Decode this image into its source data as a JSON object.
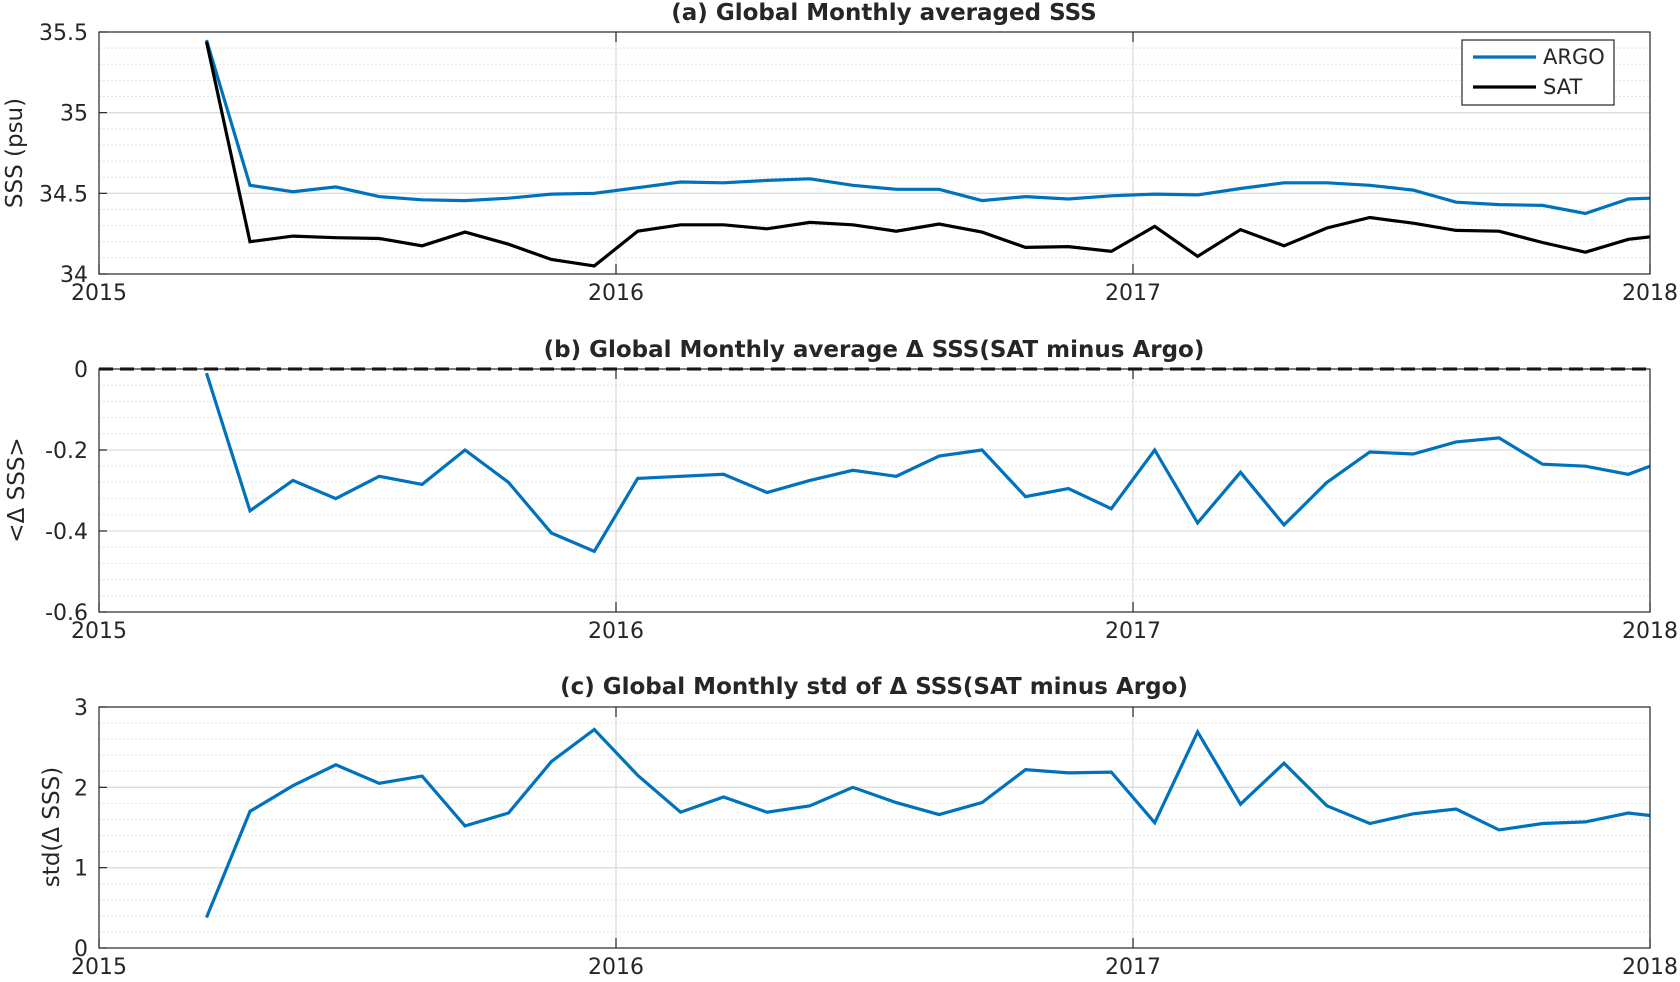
{
  "chart_data": [
    {
      "id": "a",
      "type": "line",
      "title": "(a) Global Monthly averaged SSS",
      "ylabel": "SSS (psu)",
      "xlabel": "",
      "xlim": [
        2015,
        2018
      ],
      "ylim": [
        34,
        35.5
      ],
      "xticks": [
        "2015",
        "2016",
        "2017",
        "2018"
      ],
      "yticks": [
        "34",
        "34.5",
        "35",
        "35.5"
      ],
      "grid": true,
      "legend": {
        "placement": "top-right",
        "entries": [
          "ARGO",
          "SAT"
        ]
      },
      "x": [
        2015.208,
        2015.292,
        2015.375,
        2015.458,
        2015.542,
        2015.625,
        2015.708,
        2015.792,
        2015.875,
        2015.958,
        2016.042,
        2016.125,
        2016.208,
        2016.292,
        2016.375,
        2016.458,
        2016.542,
        2016.625,
        2016.708,
        2016.792,
        2016.875,
        2016.958,
        2017.042,
        2017.125,
        2017.208,
        2017.292,
        2017.375,
        2017.458,
        2017.542,
        2017.625,
        2017.708,
        2017.792,
        2017.875,
        2017.958,
        2018.0
      ],
      "series": [
        {
          "name": "ARGO",
          "color": "#0072BD",
          "values": [
            35.45,
            34.55,
            34.51,
            34.54,
            34.48,
            34.46,
            34.455,
            34.47,
            34.495,
            34.5,
            34.535,
            34.57,
            34.565,
            34.58,
            34.59,
            34.55,
            34.525,
            34.525,
            34.455,
            34.48,
            34.465,
            34.485,
            34.495,
            34.49,
            34.53,
            34.565,
            34.565,
            34.55,
            34.52,
            34.445,
            34.43,
            34.425,
            34.375,
            34.465,
            34.47
          ]
        },
        {
          "name": "SAT",
          "color": "#000000",
          "values": [
            35.44,
            34.2,
            34.235,
            34.225,
            34.22,
            34.175,
            34.26,
            34.185,
            34.09,
            34.05,
            34.265,
            34.305,
            34.305,
            34.28,
            34.32,
            34.305,
            34.265,
            34.31,
            34.26,
            34.165,
            34.17,
            34.14,
            34.295,
            34.11,
            34.275,
            34.175,
            34.285,
            34.35,
            34.315,
            34.27,
            34.265,
            34.195,
            34.135,
            34.215,
            34.23
          ]
        }
      ]
    },
    {
      "id": "b",
      "type": "line",
      "title": "(b) Global Monthly average Δ SSS(SAT minus Argo)",
      "ylabel": "<Δ SSS>",
      "xlabel": "",
      "xlim": [
        2015,
        2018
      ],
      "ylim": [
        -0.6,
        0
      ],
      "xticks": [
        "2015",
        "2016",
        "2017",
        "2018"
      ],
      "yticks": [
        "-0.6",
        "-0.4",
        "-0.2",
        "0"
      ],
      "grid": true,
      "reference_line": {
        "y": 0,
        "style": "dashed",
        "color": "#000000"
      },
      "x": [
        2015.208,
        2015.292,
        2015.375,
        2015.458,
        2015.542,
        2015.625,
        2015.708,
        2015.792,
        2015.875,
        2015.958,
        2016.042,
        2016.125,
        2016.208,
        2016.292,
        2016.375,
        2016.458,
        2016.542,
        2016.625,
        2016.708,
        2016.792,
        2016.875,
        2016.958,
        2017.042,
        2017.125,
        2017.208,
        2017.292,
        2017.375,
        2017.458,
        2017.542,
        2017.625,
        2017.708,
        2017.792,
        2017.875,
        2017.958,
        2018.0
      ],
      "series": [
        {
          "name": "",
          "color": "#0072BD",
          "values": [
            -0.01,
            -0.35,
            -0.275,
            -0.32,
            -0.265,
            -0.285,
            -0.2,
            -0.28,
            -0.405,
            -0.45,
            -0.27,
            -0.265,
            -0.26,
            -0.305,
            -0.275,
            -0.25,
            -0.265,
            -0.215,
            -0.2,
            -0.315,
            -0.295,
            -0.345,
            -0.2,
            -0.38,
            -0.255,
            -0.385,
            -0.28,
            -0.205,
            -0.21,
            -0.18,
            -0.17,
            -0.235,
            -0.24,
            -0.26,
            -0.24
          ]
        }
      ]
    },
    {
      "id": "c",
      "type": "line",
      "title": "(c) Global Monthly std of Δ SSS(SAT minus Argo)",
      "ylabel": "std(Δ SSS)",
      "xlabel": "",
      "xlim": [
        2015,
        2018
      ],
      "ylim": [
        0,
        3
      ],
      "xticks": [
        "2015",
        "2016",
        "2017",
        "2018"
      ],
      "yticks": [
        "0",
        "1",
        "2",
        "3"
      ],
      "grid": true,
      "x": [
        2015.208,
        2015.292,
        2015.375,
        2015.458,
        2015.542,
        2015.625,
        2015.708,
        2015.792,
        2015.875,
        2015.958,
        2016.042,
        2016.125,
        2016.208,
        2016.292,
        2016.375,
        2016.458,
        2016.542,
        2016.625,
        2016.708,
        2016.792,
        2016.875,
        2016.958,
        2017.042,
        2017.125,
        2017.208,
        2017.292,
        2017.375,
        2017.458,
        2017.542,
        2017.625,
        2017.708,
        2017.792,
        2017.875,
        2017.958,
        2018.0
      ],
      "series": [
        {
          "name": "",
          "color": "#0072BD",
          "values": [
            0.38,
            1.7,
            2.02,
            2.28,
            2.05,
            2.14,
            1.52,
            1.68,
            2.32,
            2.72,
            2.15,
            1.69,
            1.88,
            1.69,
            1.77,
            2.0,
            1.81,
            1.66,
            1.81,
            2.22,
            2.18,
            2.19,
            1.56,
            2.69,
            1.79,
            2.3,
            1.77,
            1.55,
            1.67,
            1.73,
            1.47,
            1.55,
            1.57,
            1.68,
            1.65
          ]
        }
      ]
    }
  ]
}
